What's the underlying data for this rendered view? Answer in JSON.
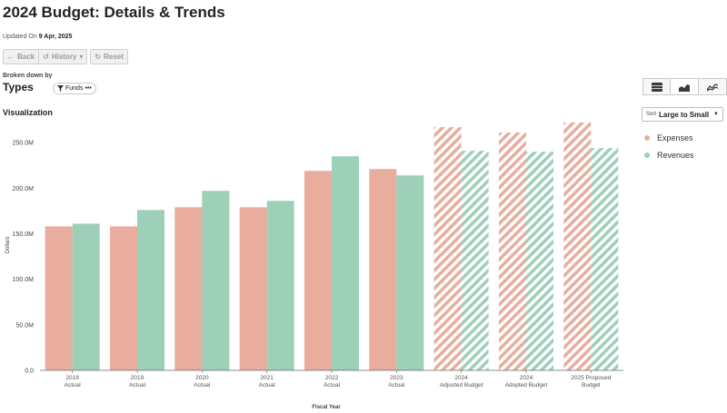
{
  "page": {
    "title": "2024 Budget: Details & Trends",
    "updated_prefix": "Updated On",
    "updated_date": "9 Apr, 2025"
  },
  "nav": {
    "back_label": "Back",
    "history_label": "History",
    "reset_label": "Reset"
  },
  "breakdown": {
    "caption": "Broken down by",
    "value": "Types",
    "filter_label": "Funds",
    "filter_more": "•••"
  },
  "view_tabs": [
    {
      "icon": "table-icon"
    },
    {
      "icon": "area-chart-icon"
    },
    {
      "icon": "line-chart-icon"
    },
    {
      "icon": "pie-chart-icon"
    }
  ],
  "visualization": {
    "label": "Visualization"
  },
  "sort": {
    "label": "Sort",
    "value": "Large to Small"
  },
  "legend": [
    {
      "name": "Expenses",
      "color": "#e8ad9c"
    },
    {
      "name": "Revenues",
      "color": "#9dcfb9"
    }
  ],
  "chart_data": {
    "type": "bar",
    "xlabel": "Fiscal Year",
    "ylabel": "Dollars",
    "ylim": [
      0,
      275
    ],
    "yticks": [
      0,
      50,
      100,
      150,
      200,
      250
    ],
    "ytick_labels": [
      "0.0",
      "50.0M",
      "100.0M",
      "150.0M",
      "200.0M",
      "250.0M"
    ],
    "categories": [
      [
        "2018",
        "Actual"
      ],
      [
        "2019",
        "Actual"
      ],
      [
        "2020",
        "Actual"
      ],
      [
        "2021",
        "Actual"
      ],
      [
        "2022",
        "Actual"
      ],
      [
        "2023",
        "Actual"
      ],
      [
        "2024",
        "Adjusted Budget"
      ],
      [
        "2024",
        "Adopted Budget"
      ],
      [
        "2025 Proposed",
        "Budget"
      ]
    ],
    "hatched": [
      false,
      false,
      false,
      false,
      false,
      false,
      true,
      true,
      true
    ],
    "series": [
      {
        "name": "Expenses",
        "color": "#e8ad9c",
        "values": [
          158,
          158,
          179,
          179,
          219,
          221,
          267,
          261,
          272
        ]
      },
      {
        "name": "Revenues",
        "color": "#9dcfb9",
        "values": [
          161,
          176,
          197,
          186,
          235,
          214,
          241,
          240,
          244
        ]
      }
    ],
    "grid": false,
    "legend_position": "right"
  }
}
